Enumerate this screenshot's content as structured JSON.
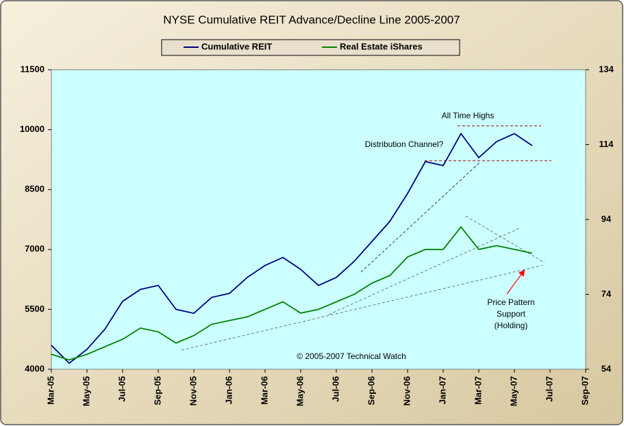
{
  "chart_data": {
    "type": "line",
    "title": "NYSE Cumulative REIT Advance/Decline Line 2005-2007",
    "legend": "top",
    "x": [
      "2005-03",
      "2005-04",
      "2005-05",
      "2005-06",
      "2005-07",
      "2005-08",
      "2005-09",
      "2005-10",
      "2005-11",
      "2005-12",
      "2006-01",
      "2006-02",
      "2006-03",
      "2006-04",
      "2006-05",
      "2006-06",
      "2006-07",
      "2006-08",
      "2006-09",
      "2006-10",
      "2006-11",
      "2006-12",
      "2007-01",
      "2007-02",
      "2007-03",
      "2007-04",
      "2007-05",
      "2007-06"
    ],
    "series": [
      {
        "name": "Cumulative REIT",
        "color": "#000080",
        "values": [
          4600,
          4150,
          4500,
          5000,
          5700,
          6000,
          6100,
          5500,
          5400,
          5800,
          5900,
          6300,
          6600,
          6800,
          6500,
          6100,
          6300,
          6700,
          7200,
          7700,
          8400,
          9200,
          9100,
          9900,
          9300,
          9700,
          9900,
          9600
        ]
      },
      {
        "name": "Real Estate iShares",
        "color": "#008000",
        "axis": "y2",
        "values": [
          58,
          56.5,
          58,
          60,
          62,
          65,
          64,
          61,
          63,
          66,
          67,
          68,
          70,
          72,
          69,
          70,
          72,
          74,
          77,
          79,
          84,
          86,
          86,
          92,
          86,
          87,
          86,
          85
        ]
      }
    ],
    "xlim": [
      "2005-03",
      "2007-09"
    ],
    "xticks": [
      {
        "value": "2005-03",
        "label": "Mar-05"
      },
      {
        "value": "2005-05",
        "label": "May-05"
      },
      {
        "value": "2005-07",
        "label": "Jul-05"
      },
      {
        "value": "2005-09",
        "label": "Sep-05"
      },
      {
        "value": "2005-11",
        "label": "Nov-05"
      },
      {
        "value": "2006-01",
        "label": "Jan-06"
      },
      {
        "value": "2006-03",
        "label": "Mar-06"
      },
      {
        "value": "2006-05",
        "label": "May-06"
      },
      {
        "value": "2006-07",
        "label": "Jul-06"
      },
      {
        "value": "2006-09",
        "label": "Sep-06"
      },
      {
        "value": "2006-11",
        "label": "Nov-06"
      },
      {
        "value": "2007-01",
        "label": "Jan-07"
      },
      {
        "value": "2007-03",
        "label": "Mar-07"
      },
      {
        "value": "2007-05",
        "label": "May-07"
      },
      {
        "value": "2007-07",
        "label": "Jul-07"
      },
      {
        "value": "2007-09",
        "label": "Sep-07"
      }
    ],
    "ylim": [
      4000,
      11500
    ],
    "yticks": [
      4000,
      5500,
      7000,
      8500,
      10000,
      11500
    ],
    "y2lim": [
      54,
      134
    ],
    "y2ticks": [
      54,
      74,
      94,
      114,
      134
    ],
    "annotations": [
      "All Time Highs",
      "Distribution Channel?",
      "Price Pattern\nSupport\n(Holding)",
      "© 2005-2007 Technical Watch"
    ]
  }
}
